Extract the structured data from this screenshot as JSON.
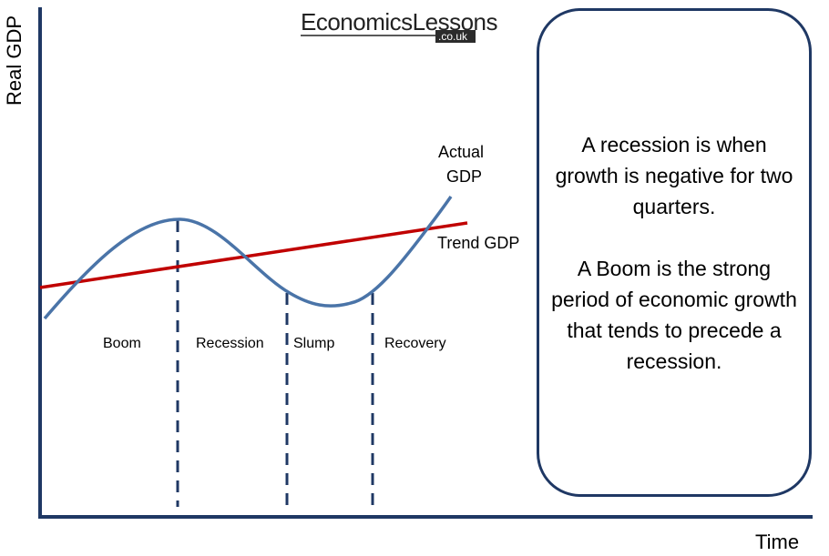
{
  "logo": {
    "name": "EconomicsLessons",
    "suffix": ".co.uk"
  },
  "axes": {
    "ylabel": "Real GDP",
    "xlabel": "Time"
  },
  "curves": {
    "actual": "Actual GDP",
    "actual_line1": "Actual",
    "actual_line2": "GDP",
    "trend": "Trend GDP"
  },
  "phases": [
    "Boom",
    "Recession",
    "Slump",
    "Recovery"
  ],
  "definitions": [
    "A recession is when growth is negative for two quarters.",
    "A Boom is the strong period of economic growth that tends to precede a recession."
  ],
  "colors": {
    "actual": "#4a74a8",
    "trend": "#c00000",
    "dashed": "#1f3864",
    "axis": "#1f3864",
    "box_border": "#1f3864"
  }
}
